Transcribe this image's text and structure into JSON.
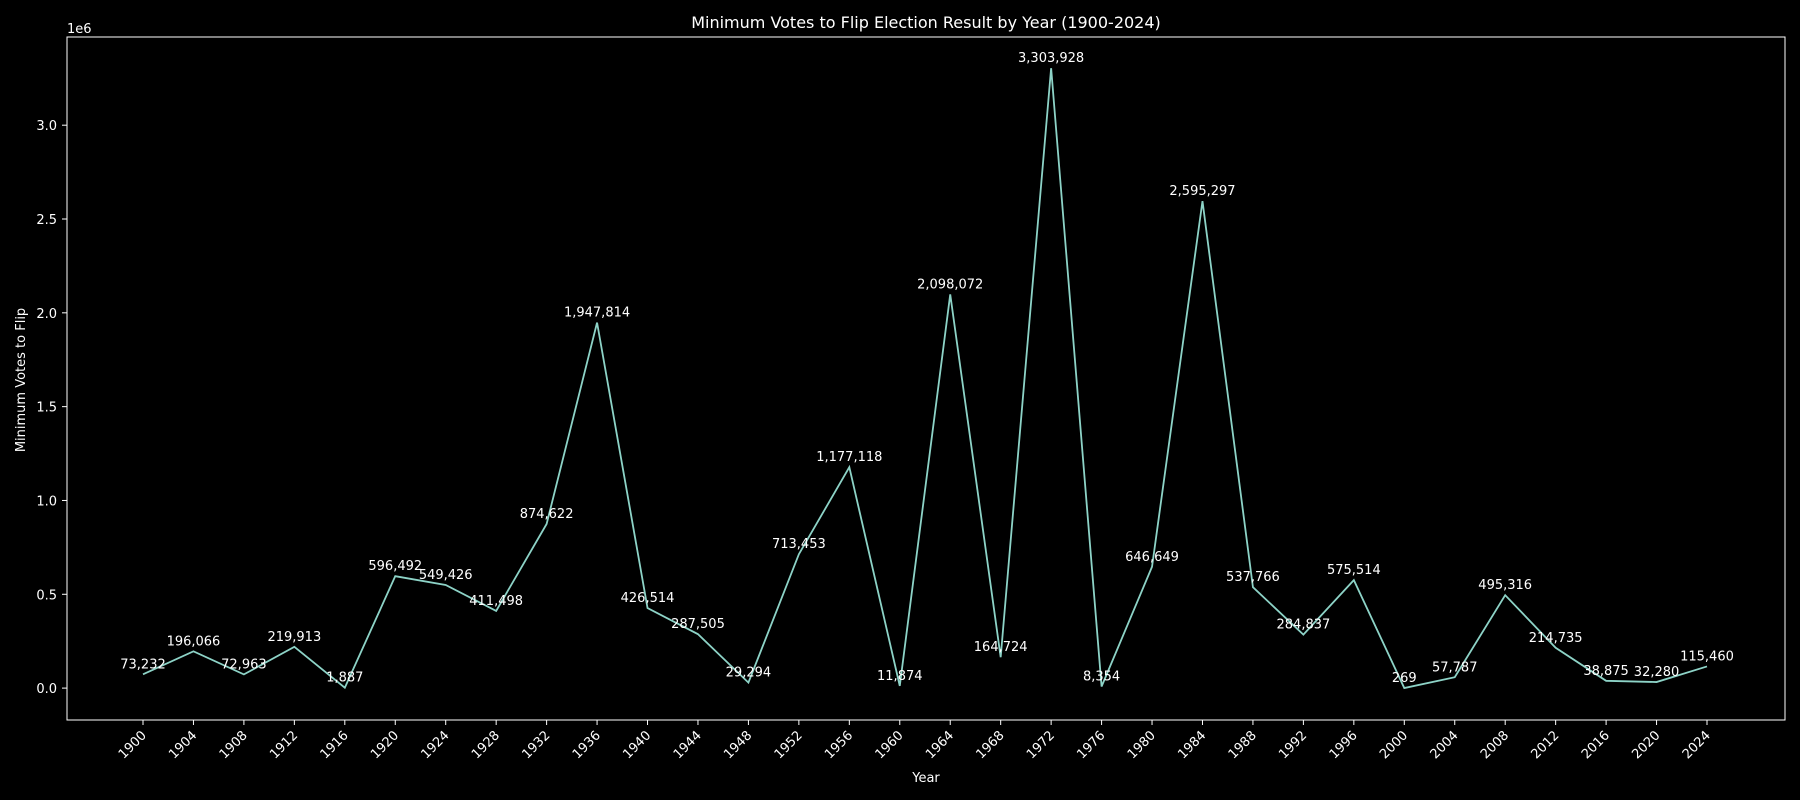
{
  "chart_data": {
    "type": "line",
    "title": "Minimum Votes to Flip Election Result by Year (1900-2024)",
    "xlabel": "Year",
    "ylabel": "Minimum Votes to Flip",
    "offset_text": "1e6",
    "ylim": [
      -170000,
      3470000
    ],
    "yticks": [
      0,
      500000,
      1000000,
      1500000,
      2000000,
      2500000,
      3000000
    ],
    "ytick_labels": [
      "0.0",
      "0.5",
      "1.0",
      "1.5",
      "2.0",
      "2.5",
      "3.0"
    ],
    "grid": false,
    "legend": "none",
    "colors": {
      "background": "#000000",
      "line": "#8dd3c7",
      "text": "#ffffff",
      "axes": "#ffffff"
    },
    "x": [
      "1900",
      "1904",
      "1908",
      "1912",
      "1916",
      "1920",
      "1924",
      "1928",
      "1932",
      "1936",
      "1940",
      "1944",
      "1948",
      "1952",
      "1956",
      "1960",
      "1964",
      "1968",
      "1972",
      "1976",
      "1980",
      "1984",
      "1988",
      "1992",
      "1996",
      "2000",
      "2004",
      "2008",
      "2012",
      "2016",
      "2020",
      "2024"
    ],
    "values": [
      73232,
      196066,
      72963,
      219913,
      1887,
      596492,
      549426,
      411498,
      874622,
      1947814,
      426514,
      287505,
      29294,
      713453,
      1177118,
      11874,
      2098072,
      164724,
      3303928,
      8354,
      646649,
      2595297,
      537766,
      284837,
      575514,
      269,
      57787,
      495316,
      214735,
      38875,
      32280,
      115460
    ],
    "data_labels": [
      "73,232",
      "196,066",
      "72,963",
      "219,913",
      "1,887",
      "596,492",
      "549,426",
      "411,498",
      "874,622",
      "1,947,814",
      "426,514",
      "287,505",
      "29,294",
      "713,453",
      "1,177,118",
      "11,874",
      "2,098,072",
      "164,724",
      "3,303,928",
      "8,354",
      "646,649",
      "2,595,297",
      "537,766",
      "284,837",
      "575,514",
      "269",
      "57,787",
      "495,316",
      "214,735",
      "38,875",
      "32,280",
      "115,460"
    ]
  }
}
